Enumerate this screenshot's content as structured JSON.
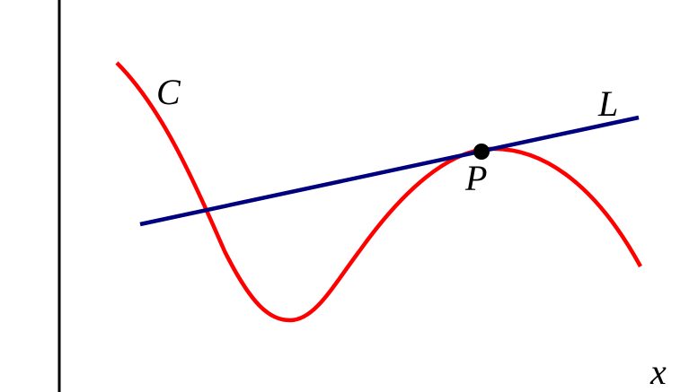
{
  "curve_label": "C",
  "line_label": "L",
  "point_label": "P",
  "axis_label": "x"
}
